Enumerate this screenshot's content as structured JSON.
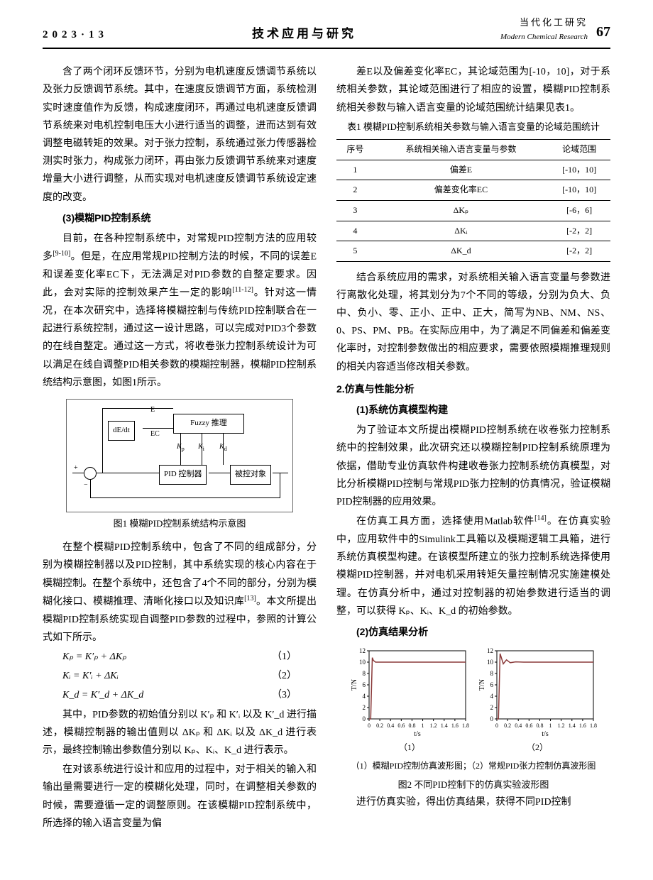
{
  "header": {
    "issue": "2023·13",
    "center": "技术应用与研究",
    "journal_cn": "当代化工研究",
    "journal_en": "Modern Chemical Research",
    "page": "67"
  },
  "left_col": {
    "p1": "含了两个闭环反馈环节，分别为电机速度反馈调节系统以及张力反馈调节系统。其中，在速度反馈调节方面，系统检测实时速度值作为反馈，构成速度闭环，再通过电机速度反馈调节系统来对电机控制电压大小进行适当的调整，进而达到有效调整电磁转矩的效果。对于张力控制，系统通过张力传感器检测实时张力，构成张力闭环，再由张力反馈调节系统来对速度增量大小进行调整，从而实现对电机速度反馈调节系统设定速度的改变。",
    "h3": "(3)模糊PID控制系统",
    "p2a": "目前，在各种控制系统中，对常规PID控制方法的应用较多",
    "p2_ref": "[9-10]",
    "p2b": "。但是，在应用常规PID控制方法的时候，不同的误差E和误差变化率EC下，无法满足对PID参数的自整定要求。因此，会对实际的控制效果产生一定的影响",
    "p2_ref2": "[11-12]",
    "p2c": "。针对这一情况，在本次研究中，选择将模糊控制与传统PID控制联合在一起进行系统控制，通过这一设计思路，可以完成对PID3个参数的在线自整定。通过这一方式，将收卷张力控制系统设计为可以满足在线自调整PID相关参数的模糊控制器，模糊PID控制系统结构示意图，如图1所示。",
    "fig1_caption": "图1 模糊PID控制系统结构示意图",
    "diagram": {
      "dE_dt": "dE/dt",
      "E": "E",
      "EC": "EC",
      "fuzzy": "Fuzzy 推理",
      "Kp": "Kₚ",
      "Ki": "Kᵢ",
      "Kd": "K_d",
      "pid": "PID 控制器",
      "plant": "被控对象"
    },
    "p3a": "在整个模糊PID控制系统中，包含了不同的组成部分，分别为模糊控制器以及PID控制，其中系统实现的核心内容在于模糊控制。在整个系统中，还包含了4个不同的部分，分别为模糊化接口、模糊推理、清晰化接口以及知识库",
    "p3_ref": "[13]",
    "p3b": "。本文所提出模糊PID控制系统实现自调整PID参数的过程中，参照的计算公式如下所示。",
    "eq1": "Kₚ = K′ₚ + ΔKₚ",
    "eq1n": "（1）",
    "eq2": "Kᵢ = K′ᵢ + ΔKᵢ",
    "eq2n": "（2）",
    "eq3": "K_d = K′_d + ΔK_d",
    "eq3n": "（3）",
    "p4": "其中，PID参数的初始值分别以 K′ₚ 和 K′ᵢ 以及 K′_d 进行描述，模糊控制器的输出值则以 ΔKₚ 和 ΔKᵢ 以及 ΔK_d 进行表示，最终控制输出参数值分别以 Kₚ、Kᵢ、K_d 进行表示。",
    "p5": "在对该系统进行设计和应用的过程中，对于相关的输入和输出量需要进行一定的模糊化处理，同时，在调整相关参数的时候，需要遵循一定的调整原则。在该模糊PID控制系统中，所选择的输入语言变量为偏"
  },
  "right_col": {
    "p1": "差E以及偏差变化率EC，其论域范围为[-10，10]，对于系统相关参数，其论域范围进行了相应的设置，模糊PID控制系统相关参数与输入语言变量的论域范围统计结果见表1。",
    "table1_caption": "表1 模糊PID控制系统相关参数与输入语言变量的论域范围统计",
    "table1": {
      "headers": [
        "序号",
        "系统相关输入语言变量与参数",
        "论域范围"
      ],
      "rows": [
        [
          "1",
          "偏差E",
          "[-10，10]"
        ],
        [
          "2",
          "偏差变化率EC",
          "[-10，10]"
        ],
        [
          "3",
          "ΔKₚ",
          "[-6，6]"
        ],
        [
          "4",
          "ΔKᵢ",
          "[-2，2]"
        ],
        [
          "5",
          "ΔK_d",
          "[-2，2]"
        ]
      ]
    },
    "p2": "结合系统应用的需求，对系统相关输入语言变量与参数进行离散化处理，将其划分为7个不同的等级，分别为负大、负中、负小、零、正小、正中、正大，简写为NB、NM、NS、0、PS、PM、PB。在实际应用中，为了满足不同偏差和偏差变化率时，对控制参数做出的相应要求，需要依照模糊推理规则的相关内容适当修改相关参数。",
    "h2": "2.仿真与性能分析",
    "h2_1": "(1)系统仿真模型构建",
    "p3": "为了验证本文所提出模糊PID控制系统在收卷张力控制系统中的控制效果，此次研究还以模糊控制PID控制系统原理为依据，借助专业仿真软件构建收卷张力控制系统仿真模型，对比分析模糊PID控制与常规PID张力控制的仿真情况，验证模糊PID控制器的应用效果。",
    "p4a": "在仿真工具方面，选择使用Matlab软件",
    "p4_ref": "[14]",
    "p4b": "。在仿真实验中，应用软件中的Simulink工具箱以及模糊逻辑工具箱，进行系统仿真模型构建。在该模型所建立的张力控制系统选择使用模糊PID控制器，并对电机采用转矩矢量控制情况实施建模处理。在仿真分析中，通过对控制器的初始参数进行适当的调整，可以获得 Kₚ、Kᵢ、K_d 的初始参数。",
    "h2_2": "(2)仿真结果分析",
    "plot": {
      "ylabel": "T/N",
      "xlabel": "t/s",
      "xlim": [
        0,
        1.8
      ],
      "ylim": [
        0,
        12
      ],
      "xticks": [
        0,
        0.2,
        0.4,
        0.6,
        0.8,
        1,
        1.2,
        1.4,
        1.6,
        1.8
      ],
      "yticks": [
        0,
        2,
        4,
        6,
        8,
        10,
        12
      ],
      "colors": {
        "line": "#8a3a3a",
        "axis": "#000",
        "bg": "#fff"
      },
      "left_series": [
        [
          0,
          0
        ],
        [
          0.03,
          0
        ],
        [
          0.06,
          10.8
        ],
        [
          0.08,
          10.3
        ],
        [
          0.12,
          10
        ],
        [
          1.8,
          10
        ]
      ],
      "right_series": [
        [
          0,
          0
        ],
        [
          0.03,
          0
        ],
        [
          0.06,
          11.5
        ],
        [
          0.12,
          9.7
        ],
        [
          0.18,
          10.4
        ],
        [
          0.25,
          9.9
        ],
        [
          0.35,
          10.05
        ],
        [
          0.5,
          10
        ],
        [
          1.8,
          10
        ]
      ],
      "sub1": "（1）",
      "sub2": "（2）"
    },
    "fig2_line": "（1）模糊PID控制仿真波形图；（2）常规PID张力控制仿真波形图",
    "fig2_caption": "图2 不同PID控制下的仿真实验波形图",
    "p5": "进行仿真实验，得出仿真结果，获得不同PID控制"
  }
}
